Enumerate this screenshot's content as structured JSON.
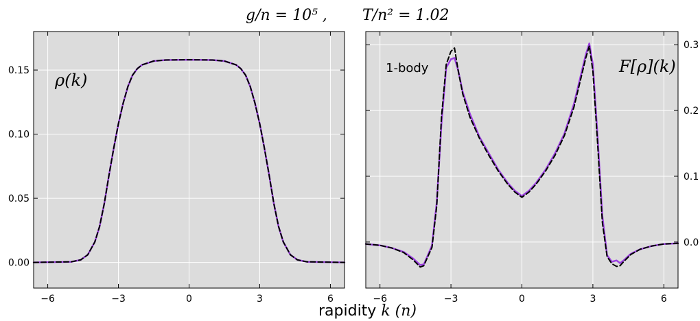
{
  "figure": {
    "title_left": "g/n = 10⁵ ,",
    "title_right": "T/n² = 1.02",
    "xlabel_prefix": "rapidity ",
    "xlabel_math": "k (n)"
  },
  "chart_data": [
    {
      "type": "line",
      "panel": "left",
      "annotation": "ρ(k)",
      "xlim": [
        -6.6,
        6.6
      ],
      "ylim": [
        -0.02,
        0.18
      ],
      "xticks": [
        -6,
        -3,
        0,
        3,
        6
      ],
      "xtick_labels": [
        "−6",
        "−3",
        "0",
        "3",
        "6"
      ],
      "yticks": [
        0.0,
        0.05,
        0.1,
        0.15
      ],
      "ytick_labels": [
        "0.00",
        "0.05",
        "0.10",
        "0.15"
      ],
      "yaxis_side": "left",
      "grid": true,
      "background": "#dcdcdc",
      "series": [
        {
          "style": "solid",
          "color": "#9b40e0",
          "x": [
            -6.6,
            -5.0,
            -4.6,
            -4.3,
            -4.0,
            -3.8,
            -3.6,
            -3.4,
            -3.2,
            -3.0,
            -2.8,
            -2.6,
            -2.4,
            -2.2,
            -2.0,
            -1.5,
            -1.0,
            0.0,
            1.0,
            1.5,
            2.0,
            2.2,
            2.4,
            2.6,
            2.8,
            3.0,
            3.2,
            3.4,
            3.6,
            3.8,
            4.0,
            4.3,
            4.6,
            5.0,
            6.6
          ],
          "y": [
            0.0,
            0.0005,
            0.002,
            0.006,
            0.016,
            0.028,
            0.046,
            0.068,
            0.089,
            0.108,
            0.124,
            0.137,
            0.146,
            0.151,
            0.154,
            0.157,
            0.1578,
            0.158,
            0.1578,
            0.157,
            0.154,
            0.151,
            0.146,
            0.137,
            0.124,
            0.108,
            0.089,
            0.068,
            0.046,
            0.028,
            0.016,
            0.006,
            0.002,
            0.0005,
            0.0
          ]
        },
        {
          "style": "dashed",
          "color": "#000000",
          "x": [
            -6.6,
            -5.0,
            -4.6,
            -4.3,
            -4.0,
            -3.8,
            -3.6,
            -3.4,
            -3.2,
            -3.0,
            -2.8,
            -2.6,
            -2.4,
            -2.2,
            -2.0,
            -1.5,
            -1.0,
            0.0,
            1.0,
            1.5,
            2.0,
            2.2,
            2.4,
            2.6,
            2.8,
            3.0,
            3.2,
            3.4,
            3.6,
            3.8,
            4.0,
            4.3,
            4.6,
            5.0,
            6.6
          ],
          "y": [
            0.0,
            0.0005,
            0.002,
            0.006,
            0.016,
            0.028,
            0.046,
            0.068,
            0.089,
            0.108,
            0.124,
            0.137,
            0.146,
            0.151,
            0.154,
            0.157,
            0.1578,
            0.158,
            0.1578,
            0.157,
            0.154,
            0.151,
            0.146,
            0.137,
            0.124,
            0.108,
            0.089,
            0.068,
            0.046,
            0.028,
            0.016,
            0.006,
            0.002,
            0.0005,
            0.0
          ]
        }
      ]
    },
    {
      "type": "line",
      "panel": "right",
      "annotation": "F[ρ](k)",
      "inset_label": "1-body",
      "xlim": [
        -6.6,
        6.6
      ],
      "ylim": [
        -0.07,
        0.32
      ],
      "xticks": [
        -6,
        -3,
        0,
        3,
        6
      ],
      "xtick_labels": [
        "−6",
        "−3",
        "0",
        "3",
        "6"
      ],
      "yticks": [
        0.0,
        0.1,
        0.2,
        0.3
      ],
      "ytick_labels": [
        "0.0",
        "0.1",
        "0.2",
        "0.3"
      ],
      "yaxis_side": "right",
      "grid": true,
      "background": "#dcdcdc",
      "series": [
        {
          "style": "solid",
          "color": "#9b40e0",
          "x": [
            -6.6,
            -6.0,
            -5.5,
            -5.0,
            -4.6,
            -4.3,
            -4.15,
            -4.0,
            -3.8,
            -3.6,
            -3.4,
            -3.2,
            -3.0,
            -2.85,
            -2.7,
            -2.5,
            -2.2,
            -1.8,
            -1.4,
            -1.0,
            -0.6,
            -0.3,
            0.0,
            0.3,
            0.6,
            1.0,
            1.4,
            1.8,
            2.2,
            2.5,
            2.7,
            2.85,
            3.0,
            3.2,
            3.4,
            3.6,
            3.8,
            4.0,
            4.15,
            4.3,
            4.6,
            5.0,
            5.5,
            6.0,
            6.6
          ],
          "y": [
            -0.003,
            -0.005,
            -0.009,
            -0.015,
            -0.025,
            -0.035,
            -0.034,
            -0.022,
            -0.005,
            0.06,
            0.18,
            0.265,
            0.278,
            0.28,
            0.262,
            0.228,
            0.195,
            0.16,
            0.135,
            0.11,
            0.09,
            0.078,
            0.07,
            0.078,
            0.09,
            0.11,
            0.135,
            0.165,
            0.21,
            0.255,
            0.285,
            0.302,
            0.27,
            0.16,
            0.04,
            -0.02,
            -0.03,
            -0.028,
            -0.032,
            -0.028,
            -0.018,
            -0.011,
            -0.006,
            -0.003,
            -0.002
          ]
        },
        {
          "style": "dashed",
          "color": "#000000",
          "x": [
            -6.6,
            -6.0,
            -5.5,
            -5.0,
            -4.6,
            -4.3,
            -4.15,
            -4.0,
            -3.8,
            -3.6,
            -3.4,
            -3.2,
            -3.0,
            -2.85,
            -2.7,
            -2.5,
            -2.2,
            -1.8,
            -1.4,
            -1.0,
            -0.6,
            -0.3,
            0.0,
            0.3,
            0.6,
            1.0,
            1.4,
            1.8,
            2.2,
            2.5,
            2.7,
            2.85,
            3.0,
            3.2,
            3.4,
            3.6,
            3.8,
            4.0,
            4.15,
            4.3,
            4.6,
            5.0,
            5.5,
            6.0,
            6.6
          ],
          "y": [
            -0.003,
            -0.005,
            -0.009,
            -0.016,
            -0.027,
            -0.038,
            -0.036,
            -0.024,
            -0.008,
            0.055,
            0.19,
            0.27,
            0.29,
            0.295,
            0.262,
            0.225,
            0.19,
            0.158,
            0.132,
            0.108,
            0.088,
            0.076,
            0.068,
            0.076,
            0.088,
            0.108,
            0.132,
            0.162,
            0.205,
            0.25,
            0.28,
            0.298,
            0.26,
            0.15,
            0.03,
            -0.022,
            -0.033,
            -0.037,
            -0.036,
            -0.03,
            -0.019,
            -0.011,
            -0.006,
            -0.003,
            -0.002
          ]
        }
      ]
    }
  ]
}
